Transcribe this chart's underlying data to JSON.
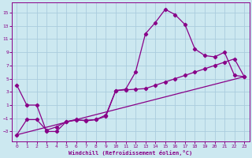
{
  "xlabel": "Windchill (Refroidissement éolien,°C)",
  "background_color": "#cce8f0",
  "grid_color": "#aaccdd",
  "line_color": "#880088",
  "marker": "D",
  "marker_size": 2.2,
  "line_width": 0.9,
  "xlim": [
    -0.5,
    23.5
  ],
  "ylim": [
    -4.5,
    16.5
  ],
  "xticks": [
    0,
    1,
    2,
    3,
    4,
    5,
    6,
    7,
    8,
    9,
    10,
    11,
    12,
    13,
    14,
    15,
    16,
    17,
    18,
    19,
    20,
    21,
    22,
    23
  ],
  "yticks": [
    -3,
    -1,
    1,
    3,
    5,
    7,
    9,
    11,
    13,
    15
  ],
  "series1_x": [
    0,
    1,
    2,
    3,
    4,
    5,
    6,
    7,
    8,
    9,
    10,
    11,
    12,
    13,
    14,
    15,
    16,
    17,
    18,
    19,
    20,
    21,
    22,
    23
  ],
  "series1_y": [
    4.0,
    1.0,
    1.0,
    -3.0,
    -3.0,
    -1.5,
    -1.3,
    -1.3,
    -1.2,
    -0.5,
    3.2,
    3.4,
    6.0,
    11.8,
    13.5,
    15.5,
    14.7,
    13.2,
    9.5,
    8.5,
    8.3,
    9.0,
    5.5,
    5.3
  ],
  "series2_x": [
    0,
    1,
    2,
    3,
    4,
    5,
    6,
    7,
    8,
    9,
    10,
    11,
    12,
    13,
    14,
    15,
    16,
    17,
    18,
    19,
    20,
    21,
    22,
    23
  ],
  "series2_y": [
    -3.5,
    -1.2,
    -1.2,
    -2.8,
    -2.3,
    -1.5,
    -1.2,
    -1.4,
    -1.2,
    -0.7,
    3.2,
    3.3,
    3.4,
    3.5,
    4.0,
    4.5,
    5.0,
    5.5,
    6.0,
    6.5,
    7.0,
    7.5,
    8.0,
    5.3
  ],
  "series3_x": [
    0,
    23
  ],
  "series3_y": [
    -3.5,
    5.3
  ]
}
